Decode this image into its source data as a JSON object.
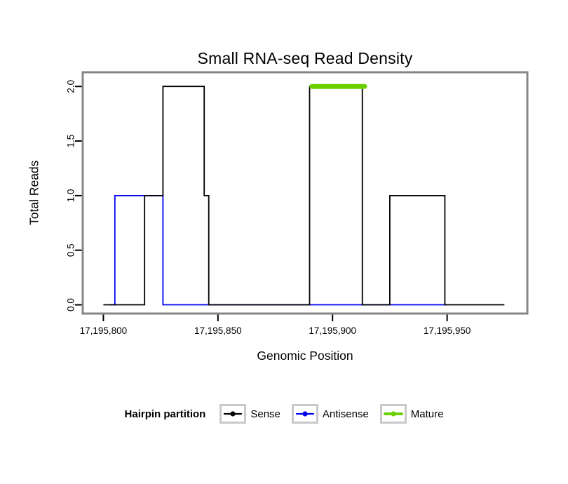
{
  "chart_data": {
    "type": "line",
    "title": "Small RNA-seq Read Density",
    "xlabel": "Genomic Position",
    "ylabel": "Total Reads",
    "xlim": [
      17195791,
      17195985
    ],
    "ylim": [
      -0.08,
      2.13
    ],
    "grid": false,
    "x_ticks": {
      "values": [
        17195800,
        17195850,
        17195900,
        17195950
      ],
      "labels": [
        "17,195,800",
        "17,195,850",
        "17,195,900",
        "17,195,950"
      ]
    },
    "y_ticks": {
      "values": [
        0.0,
        0.5,
        1.0,
        1.5,
        2.0
      ],
      "labels": [
        "0.0",
        "0.5",
        "1.0",
        "1.5",
        "2.0"
      ]
    },
    "legend": {
      "title": "Hairpin partition",
      "position": "bottom",
      "entries": [
        "Sense",
        "Antisense",
        "Mature"
      ]
    },
    "series": [
      {
        "name": "Sense",
        "color": "#000000",
        "width": 1.8,
        "linecap": "butt",
        "zorder": 2,
        "points": [
          [
            17195800,
            0
          ],
          [
            17195818,
            0
          ],
          [
            17195818,
            1
          ],
          [
            17195826,
            1
          ],
          [
            17195826,
            2
          ],
          [
            17195844,
            2
          ],
          [
            17195844,
            1
          ],
          [
            17195846,
            1
          ],
          [
            17195846,
            0
          ],
          [
            17195890,
            0
          ],
          [
            17195890,
            2
          ],
          [
            17195913,
            2
          ],
          [
            17195913,
            0
          ],
          [
            17195925,
            0
          ],
          [
            17195925,
            1
          ],
          [
            17195949,
            1
          ],
          [
            17195949,
            0
          ],
          [
            17195975,
            0
          ]
        ]
      },
      {
        "name": "Antisense",
        "color": "#0000EE",
        "width": 1.8,
        "linecap": "butt",
        "zorder": 1,
        "points": [
          [
            17195803,
            0
          ],
          [
            17195805,
            0
          ],
          [
            17195805,
            1
          ],
          [
            17195826,
            1
          ],
          [
            17195826,
            0
          ],
          [
            17195950,
            0
          ]
        ]
      },
      {
        "name": "Mature",
        "color": "#6CD000",
        "width": 7,
        "linecap": "round",
        "zorder": 3,
        "points": [
          [
            17195891,
            2
          ],
          [
            17195914,
            2
          ]
        ]
      }
    ],
    "colors": {
      "panel_border": "#868686",
      "legend_key_border": "#C9C9C9",
      "tick": "#000000",
      "background": "#FFFFFF"
    }
  }
}
